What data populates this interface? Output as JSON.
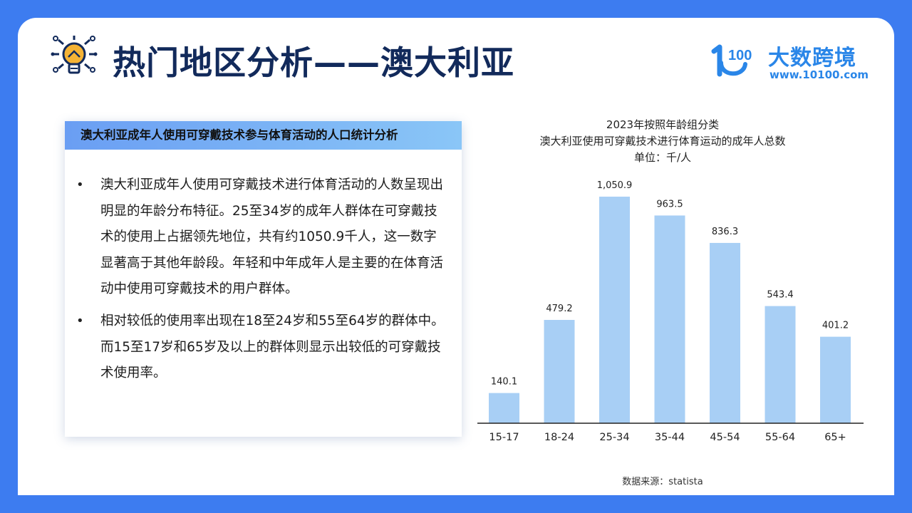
{
  "header": {
    "title": "热门地区分析——澳大利亚",
    "icon": "lightbulb-icon"
  },
  "logo": {
    "name": "大数跨境",
    "url": "www.10100.com",
    "mark_text": "100",
    "color": "#2a86e8"
  },
  "card": {
    "title": "澳大利亚成年人使用可穿戴技术参与体育活动的人口统计分析",
    "bullets": [
      "澳大利亚成年人使用可穿戴技术进行体育活动的人数呈现出明显的年龄分布特征。25至34岁的成年人群体在可穿戴技术的使用上占据领先地位，共有约1050.9千人，这一数字显著高于其他年龄段。年轻和中年成年人是主要的在体育活动中使用可穿戴技术的用户群体。",
      "相对较低的使用率出现在18至24岁和55至64岁的群体中。而15至17岁和65岁及以上的群体则显示出较低的可穿戴技术使用率。"
    ],
    "bullet_symbol": "•"
  },
  "chart_data": {
    "type": "bar",
    "title": "2023年按照年龄组分类",
    "subtitle": "澳大利亚使用可穿戴技术进行体育运动的成年人总数",
    "unit": "单位：千/人",
    "categories": [
      "15-17",
      "18-24",
      "25-34",
      "35-44",
      "45-54",
      "55-64",
      "65+"
    ],
    "values": [
      140.1,
      479.2,
      1050.9,
      963.5,
      836.3,
      543.4,
      401.2
    ],
    "value_labels": [
      "140.1",
      "479.2",
      "1,050.9",
      "963.5",
      "836.3",
      "543.4",
      "401.2"
    ],
    "ylim": [
      0,
      1050.9
    ],
    "grid": false,
    "bar_color": "#a8cff5",
    "axis_color": "#222222"
  },
  "source": "数据来源：statista",
  "colors": {
    "background": "#3d7cf0",
    "title": "#122a5b",
    "card_header_start": "#6a9ef3",
    "card_header_end": "#8ac6f7"
  }
}
